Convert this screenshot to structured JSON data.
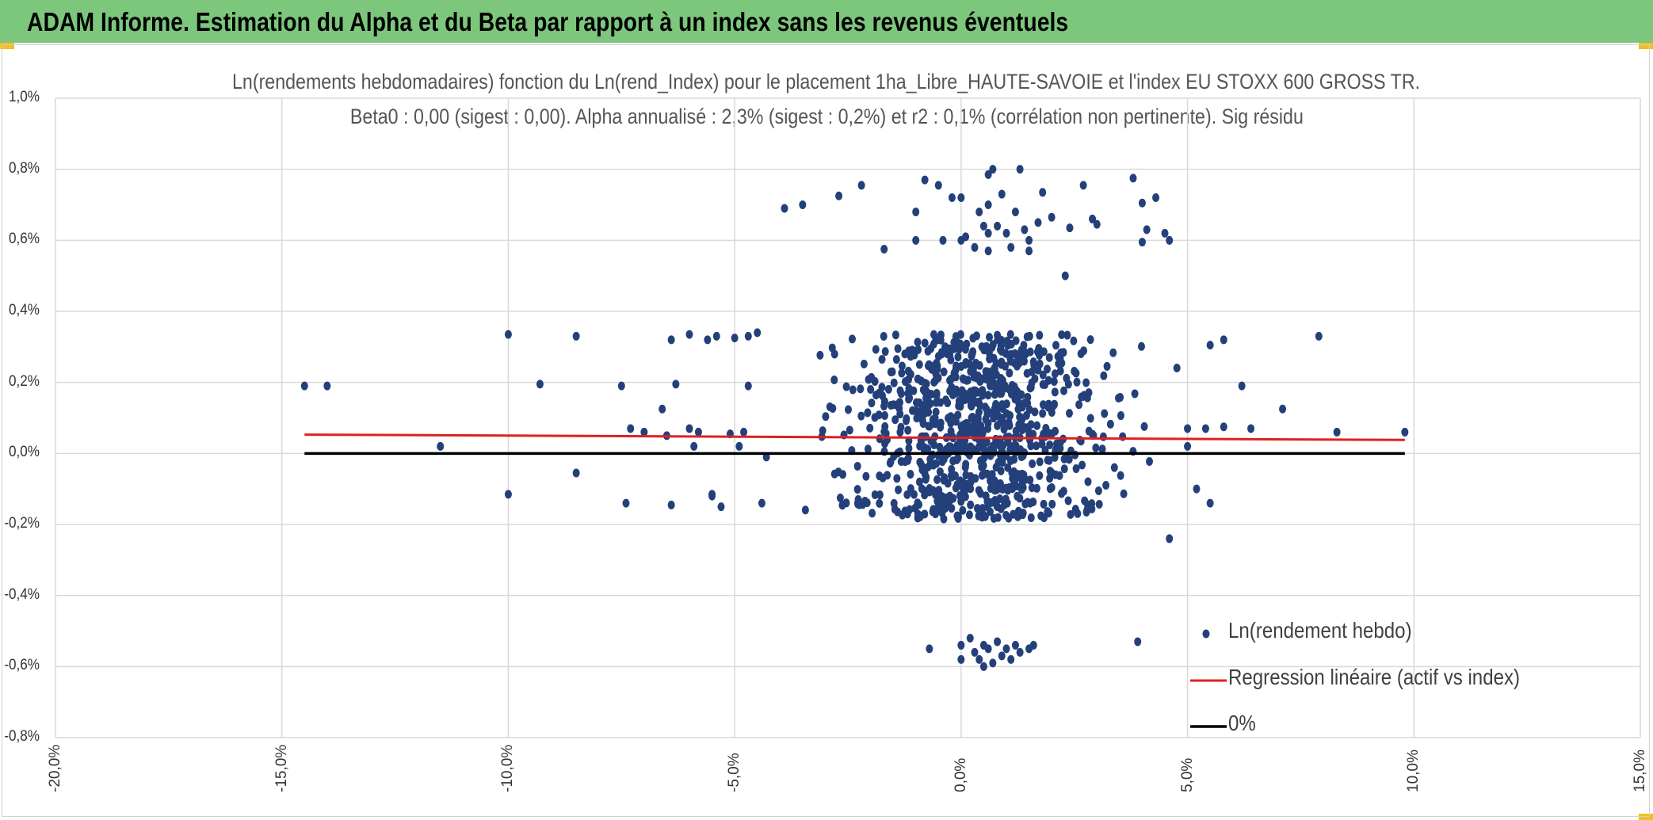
{
  "header": {
    "title": "ADAM Informe. Estimation du Alpha et du Beta par rapport à un index sans les revenus éventuels"
  },
  "colors": {
    "header_bg": "#7dc77d",
    "points": "#24407a",
    "regression": "#e02020",
    "zero": "#000000",
    "grid": "#d9d9d9"
  },
  "chart_data": {
    "type": "scatter",
    "title_line1": "Ln(rendements hebdomadaires) fonction du Ln(rend_Index) pour le placement 1ha_Libre_HAUTE-SAVOIE et l'index EU STOXX 600 GROSS TR.",
    "title_line2": "Beta0 : 0,00 (sigest : 0,00). Alpha annualisé : 2,3% (sigest : 0,2%) et r2 : 0,1% (corrélation non pertinente). Sig résidu",
    "xlim": [
      -20,
      15
    ],
    "ylim": [
      -0.8,
      1.0
    ],
    "x_ticks": [
      -20,
      -15,
      -10,
      -5,
      0,
      5,
      10,
      15
    ],
    "y_ticks": [
      1.0,
      0.8,
      0.6,
      0.4,
      0.2,
      0.0,
      -0.2,
      -0.4,
      -0.6,
      -0.8
    ],
    "x_tick_labels": [
      "-20,0%",
      "-15,0%",
      "-10,0%",
      "-5,0%",
      "0,0%",
      "5,0%",
      "10,0%",
      "15,0%"
    ],
    "y_tick_labels": [
      "1,0%",
      "0,8%",
      "0,6%",
      "0,4%",
      "0,2%",
      "0,0%",
      "-0,2%",
      "-0,4%",
      "-0,6%",
      "-0,8%"
    ],
    "series": [
      {
        "name": "Ln(rendement hebdo)",
        "kind": "scatter",
        "points": [
          [
            -14.5,
            0.19
          ],
          [
            -14.0,
            0.19
          ],
          [
            -11.5,
            0.02
          ],
          [
            -10.0,
            0.335
          ],
          [
            -10.0,
            -0.115
          ],
          [
            -9.3,
            0.195
          ],
          [
            -8.5,
            0.33
          ],
          [
            -8.5,
            -0.055
          ],
          [
            -7.5,
            0.19
          ],
          [
            -7.4,
            -0.14
          ],
          [
            -7.3,
            0.07
          ],
          [
            -7.0,
            0.06
          ],
          [
            -6.6,
            0.125
          ],
          [
            -6.5,
            0.05
          ],
          [
            -6.4,
            0.32
          ],
          [
            -6.4,
            -0.145
          ],
          [
            -6.3,
            0.195
          ],
          [
            -6.0,
            0.335
          ],
          [
            -6.0,
            0.07
          ],
          [
            -5.9,
            0.02
          ],
          [
            -5.8,
            0.06
          ],
          [
            -5.6,
            0.32
          ],
          [
            -5.5,
            -0.115
          ],
          [
            -5.4,
            0.33
          ],
          [
            -5.3,
            -0.15
          ],
          [
            -5.1,
            0.055
          ],
          [
            -5.0,
            0.325
          ],
          [
            -4.8,
            0.06
          ],
          [
            -4.7,
            0.33
          ],
          [
            -4.5,
            0.34
          ],
          [
            -4.4,
            -0.14
          ],
          [
            -4.3,
            -0.01
          ],
          [
            -5.5,
            -0.12
          ],
          [
            -4.9,
            0.02
          ],
          [
            -4.7,
            0.19
          ],
          [
            -3.9,
            0.69
          ],
          [
            -3.5,
            0.7
          ],
          [
            -2.7,
            0.725
          ],
          [
            -2.2,
            0.755
          ],
          [
            -1.7,
            0.575
          ],
          [
            -0.8,
            0.77
          ],
          [
            -1.0,
            0.68
          ],
          [
            -1.0,
            0.6
          ],
          [
            -0.5,
            0.755
          ],
          [
            -0.4,
            0.6
          ],
          [
            -0.2,
            0.72
          ],
          [
            0.0,
            0.72
          ],
          [
            0.0,
            0.6
          ],
          [
            0.1,
            0.61
          ],
          [
            0.3,
            0.58
          ],
          [
            0.4,
            0.68
          ],
          [
            0.5,
            0.64
          ],
          [
            0.6,
            0.785
          ],
          [
            0.6,
            0.7
          ],
          [
            0.6,
            0.62
          ],
          [
            0.6,
            0.57
          ],
          [
            0.7,
            0.8
          ],
          [
            0.8,
            0.64
          ],
          [
            0.9,
            0.73
          ],
          [
            1.0,
            0.62
          ],
          [
            1.1,
            0.58
          ],
          [
            1.2,
            0.68
          ],
          [
            1.3,
            0.8
          ],
          [
            1.4,
            0.63
          ],
          [
            1.5,
            0.57
          ],
          [
            1.5,
            0.6
          ],
          [
            1.7,
            0.65
          ],
          [
            1.8,
            0.735
          ],
          [
            2.0,
            0.665
          ],
          [
            2.3,
            0.5
          ],
          [
            2.4,
            0.635
          ],
          [
            2.7,
            0.755
          ],
          [
            2.9,
            0.66
          ],
          [
            3.0,
            0.645
          ],
          [
            3.8,
            0.775
          ],
          [
            4.0,
            0.595
          ],
          [
            4.1,
            0.63
          ],
          [
            4.0,
            0.705
          ],
          [
            4.3,
            0.72
          ],
          [
            4.6,
            0.6
          ],
          [
            4.5,
            0.62
          ],
          [
            -0.7,
            -0.55
          ],
          [
            0.0,
            -0.54
          ],
          [
            0.0,
            -0.58
          ],
          [
            0.2,
            -0.52
          ],
          [
            0.3,
            -0.56
          ],
          [
            0.4,
            -0.58
          ],
          [
            0.5,
            -0.54
          ],
          [
            0.5,
            -0.6
          ],
          [
            0.6,
            -0.55
          ],
          [
            0.7,
            -0.59
          ],
          [
            0.8,
            -0.53
          ],
          [
            0.9,
            -0.57
          ],
          [
            1.0,
            -0.55
          ],
          [
            1.1,
            -0.58
          ],
          [
            1.2,
            -0.54
          ],
          [
            1.3,
            -0.56
          ],
          [
            1.5,
            -0.55
          ],
          [
            1.6,
            -0.54
          ],
          [
            3.9,
            -0.53
          ],
          [
            4.6,
            -0.24
          ],
          [
            5.5,
            0.305
          ],
          [
            5.8,
            0.32
          ],
          [
            6.2,
            0.19
          ],
          [
            6.4,
            0.07
          ],
          [
            7.1,
            0.125
          ],
          [
            7.9,
            0.33
          ],
          [
            8.3,
            0.06
          ],
          [
            9.8,
            0.06
          ],
          [
            5.0,
            0.02
          ],
          [
            5.2,
            -0.1
          ],
          [
            5.5,
            -0.14
          ],
          [
            5.0,
            0.07
          ],
          [
            5.4,
            0.07
          ],
          [
            5.8,
            0.075
          ]
        ]
      },
      {
        "name": "Regression linéaire (actif vs index)",
        "kind": "line",
        "x": [
          -14.5,
          9.8
        ],
        "y": [
          0.053,
          0.038
        ]
      },
      {
        "name": "0%",
        "kind": "line",
        "x": [
          -14.5,
          9.8
        ],
        "y": [
          0.0,
          0.0
        ]
      }
    ],
    "legend": {
      "position": "bottom-right",
      "entries": [
        "Ln(rendement hebdo)",
        "Regression linéaire (actif vs index)",
        "0%"
      ]
    }
  }
}
